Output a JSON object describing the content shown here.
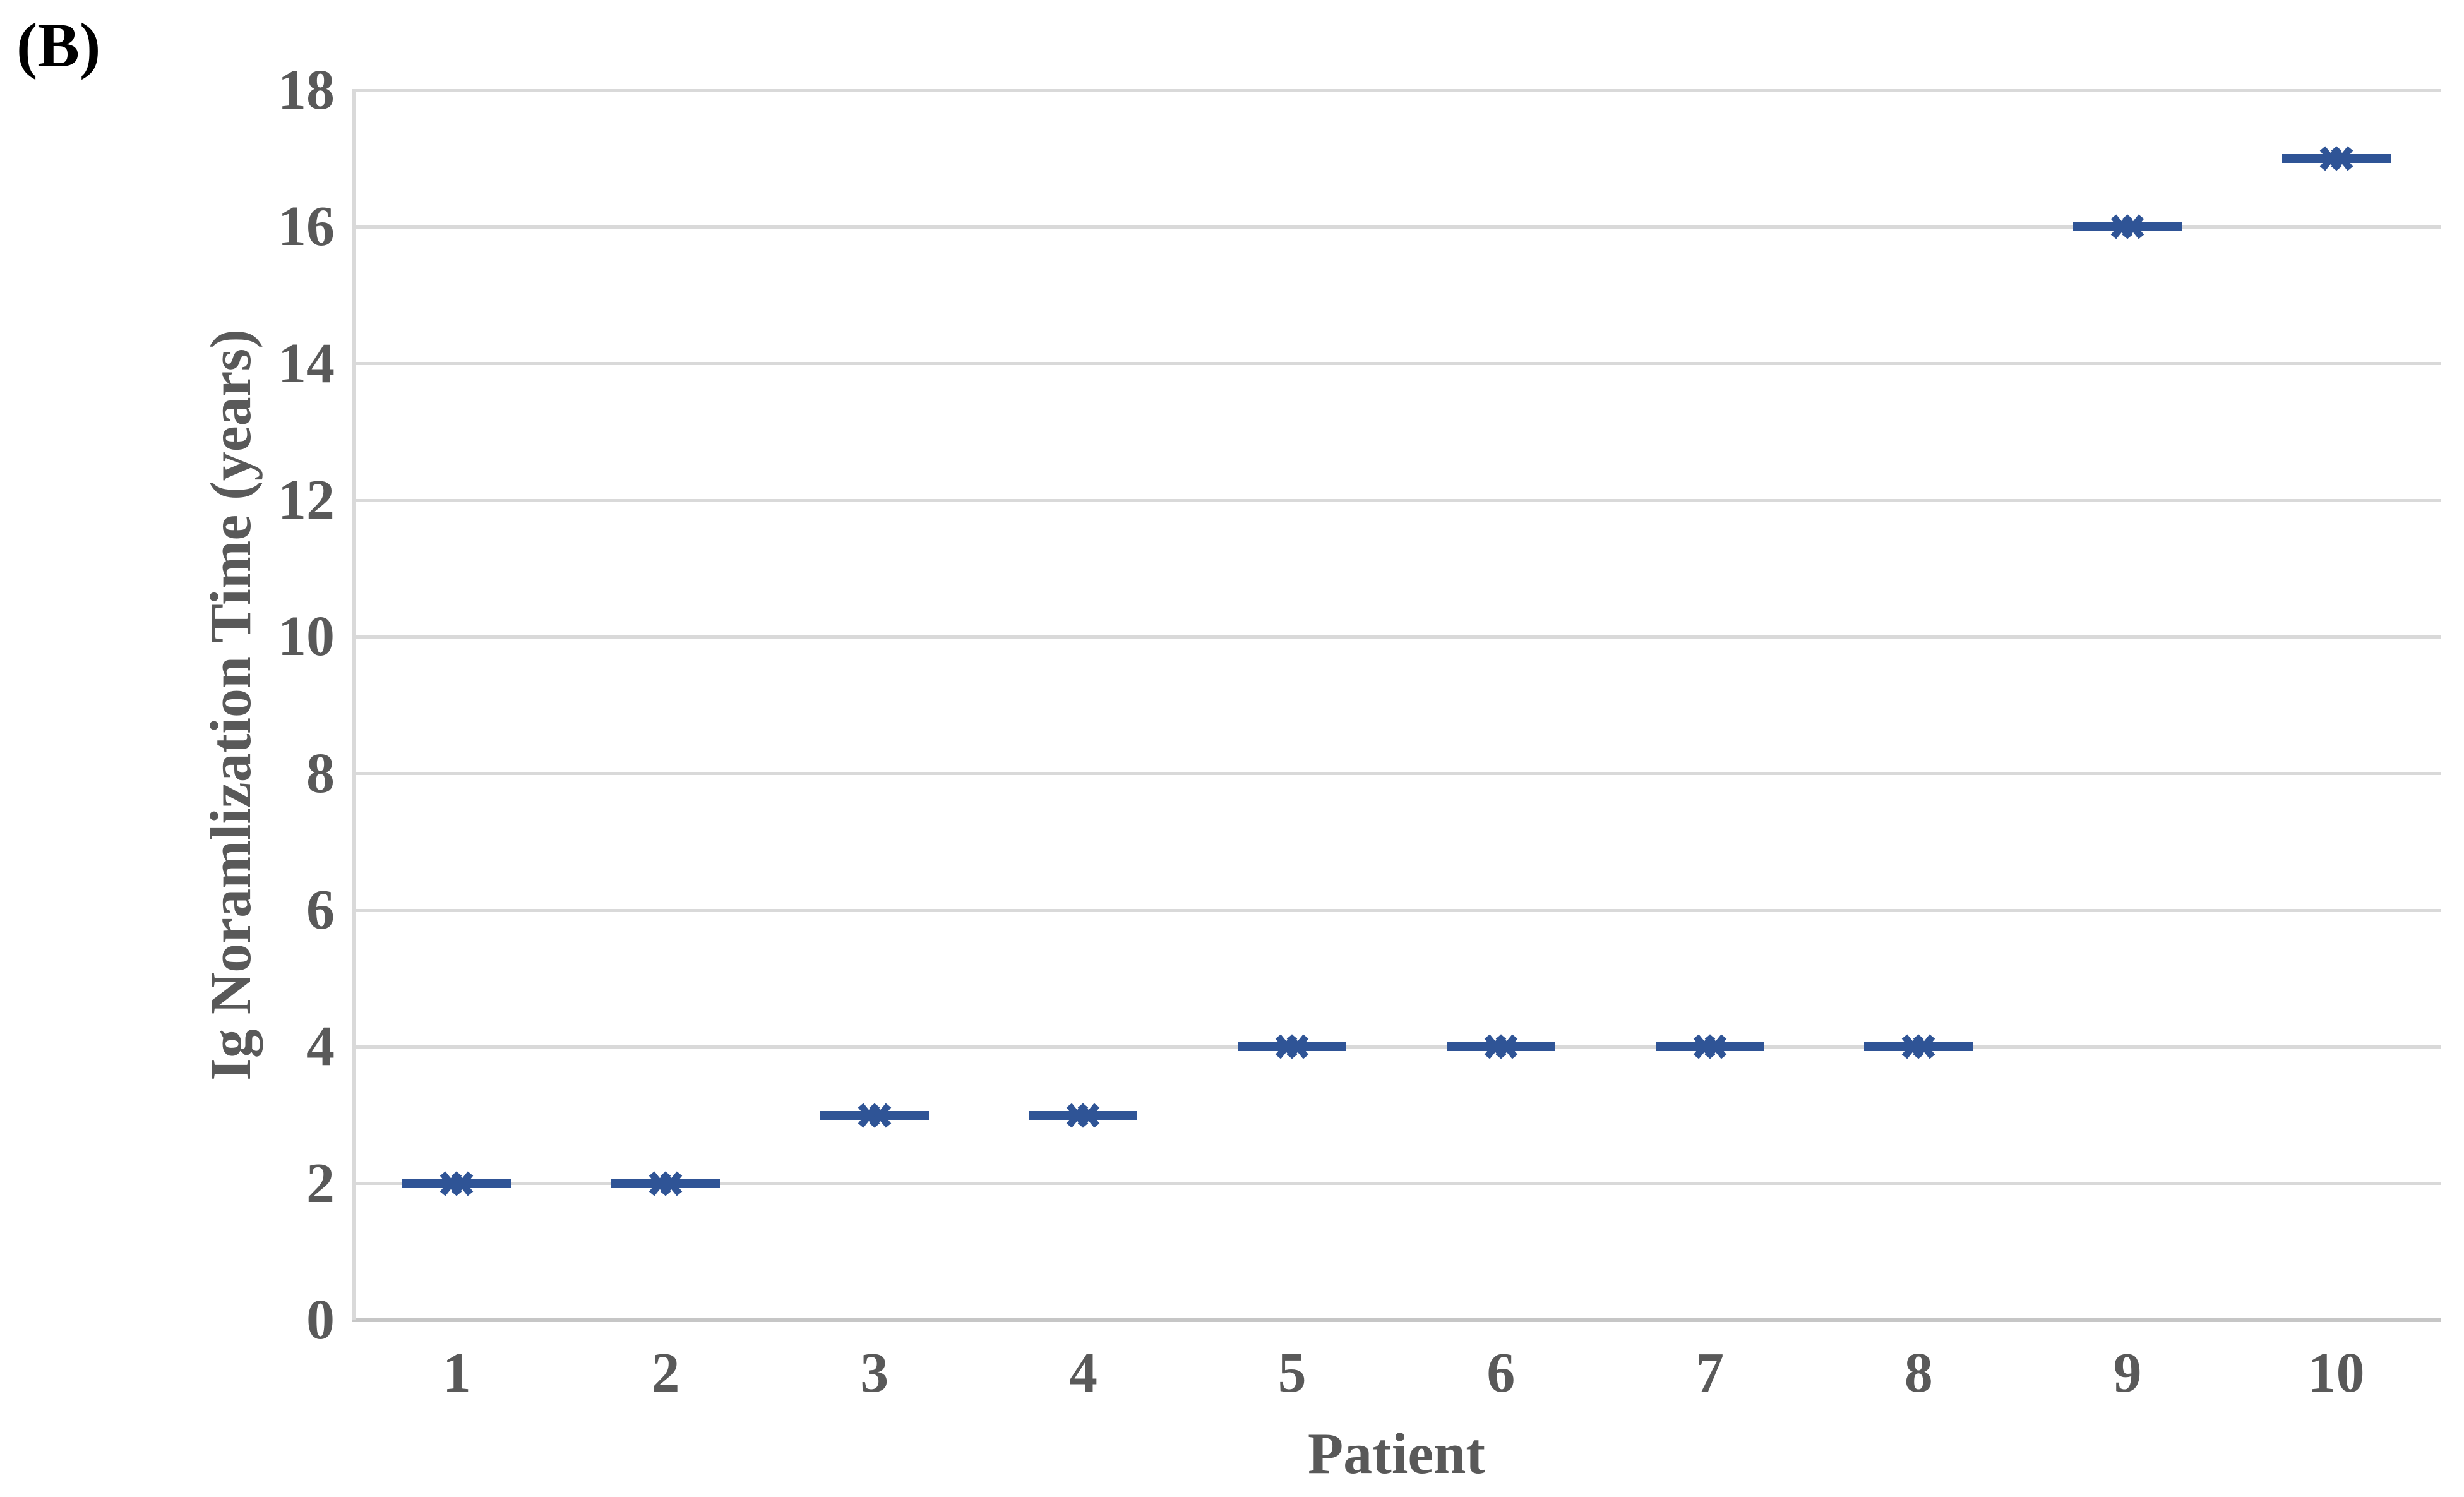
{
  "panel_label": "(B)",
  "colors": {
    "series": "#2F5496",
    "gridline": "#D9D9D9",
    "axis_line": "#C6C6C6",
    "tick_text": "#595959",
    "panel_label_color": "#000000"
  },
  "chart_data": {
    "type": "scatter",
    "marker": "double-x-mean-marker-with-median-bar",
    "title": "",
    "xlabel": "Patient",
    "ylabel": "Ig Noramlization Time (years)",
    "categories": [
      "1",
      "2",
      "3",
      "4",
      "5",
      "6",
      "7",
      "8",
      "9",
      "10"
    ],
    "values": [
      2,
      2,
      3,
      3,
      4,
      4,
      4,
      4,
      16,
      17
    ],
    "ylim": [
      0,
      18
    ],
    "yticks": [
      0,
      2,
      4,
      6,
      8,
      10,
      12,
      14,
      16,
      18
    ],
    "grid": "horizontal",
    "legend": "none"
  }
}
